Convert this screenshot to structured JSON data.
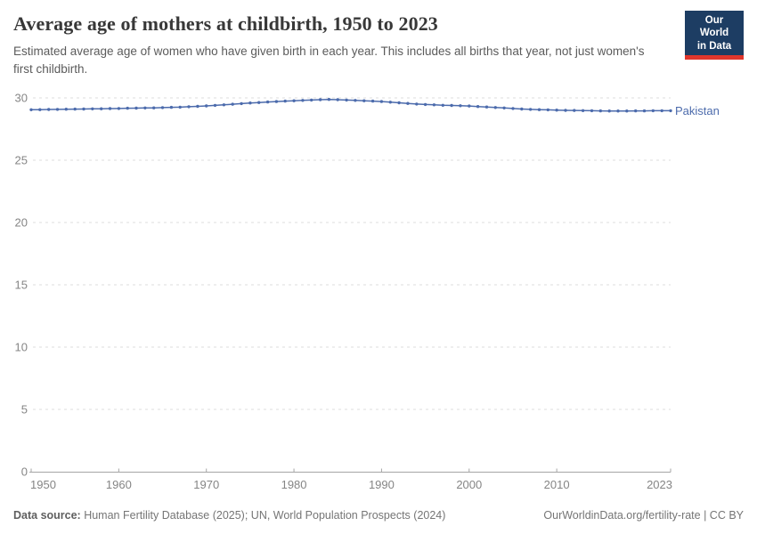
{
  "header": {
    "title": "Average age of mothers at childbirth, 1950 to 2023",
    "subtitle": "Estimated average age of women who have given birth in each year. This includes all births that year, not just women's first childbirth.",
    "logo": {
      "line1": "Our World",
      "line2": "in Data"
    }
  },
  "chart_data": {
    "type": "line",
    "title": "Average age of mothers at childbirth, 1950 to 2023",
    "xlabel": "",
    "ylabel": "",
    "xlim": [
      1950,
      2023
    ],
    "ylim": [
      0,
      30
    ],
    "xticks": [
      1950,
      1960,
      1970,
      1980,
      1990,
      2000,
      2010,
      2023
    ],
    "yticks": [
      0,
      5,
      10,
      15,
      20,
      25,
      30
    ],
    "grid": "horizontal-dashed",
    "legend_position": "end-of-line",
    "x": [
      1950,
      1951,
      1952,
      1953,
      1954,
      1955,
      1956,
      1957,
      1958,
      1959,
      1960,
      1961,
      1962,
      1963,
      1964,
      1965,
      1966,
      1967,
      1968,
      1969,
      1970,
      1971,
      1972,
      1973,
      1974,
      1975,
      1976,
      1977,
      1978,
      1979,
      1980,
      1981,
      1982,
      1983,
      1984,
      1985,
      1986,
      1987,
      1988,
      1989,
      1990,
      1991,
      1992,
      1993,
      1994,
      1995,
      1996,
      1997,
      1998,
      1999,
      2000,
      2001,
      2002,
      2003,
      2004,
      2005,
      2006,
      2007,
      2008,
      2009,
      2010,
      2011,
      2012,
      2013,
      2014,
      2015,
      2016,
      2017,
      2018,
      2019,
      2020,
      2021,
      2022,
      2023
    ],
    "series": [
      {
        "name": "Pakistan",
        "color": "#4c6bac",
        "values": [
          29.05,
          29.06,
          29.07,
          29.08,
          29.09,
          29.1,
          29.11,
          29.12,
          29.13,
          29.14,
          29.15,
          29.17,
          29.18,
          29.19,
          29.2,
          29.22,
          29.24,
          29.26,
          29.29,
          29.32,
          29.36,
          29.4,
          29.44,
          29.49,
          29.54,
          29.59,
          29.63,
          29.67,
          29.71,
          29.74,
          29.77,
          29.8,
          29.83,
          29.86,
          29.88,
          29.86,
          29.83,
          29.8,
          29.77,
          29.74,
          29.71,
          29.66,
          29.61,
          29.56,
          29.51,
          29.47,
          29.44,
          29.41,
          29.39,
          29.37,
          29.35,
          29.31,
          29.27,
          29.23,
          29.19,
          29.15,
          29.11,
          29.08,
          29.06,
          29.04,
          29.02,
          29.0,
          28.99,
          28.98,
          28.97,
          28.96,
          28.95,
          28.95,
          28.95,
          28.96,
          28.96,
          28.97,
          28.97,
          28.97
        ]
      }
    ]
  },
  "footer": {
    "datasource_label": "Data source:",
    "datasource_value": " Human Fertility Database (2025); UN, World Population Prospects (2024)",
    "link": "OurWorldinData.org/fertility-rate | CC BY"
  },
  "colors": {
    "accent": "#4c6bac",
    "grid": "#dcdcdc",
    "axis": "#a5a5a5",
    "tick_text": "#858585",
    "logo_bg": "#1d3d63",
    "logo_red": "#e0362c"
  }
}
